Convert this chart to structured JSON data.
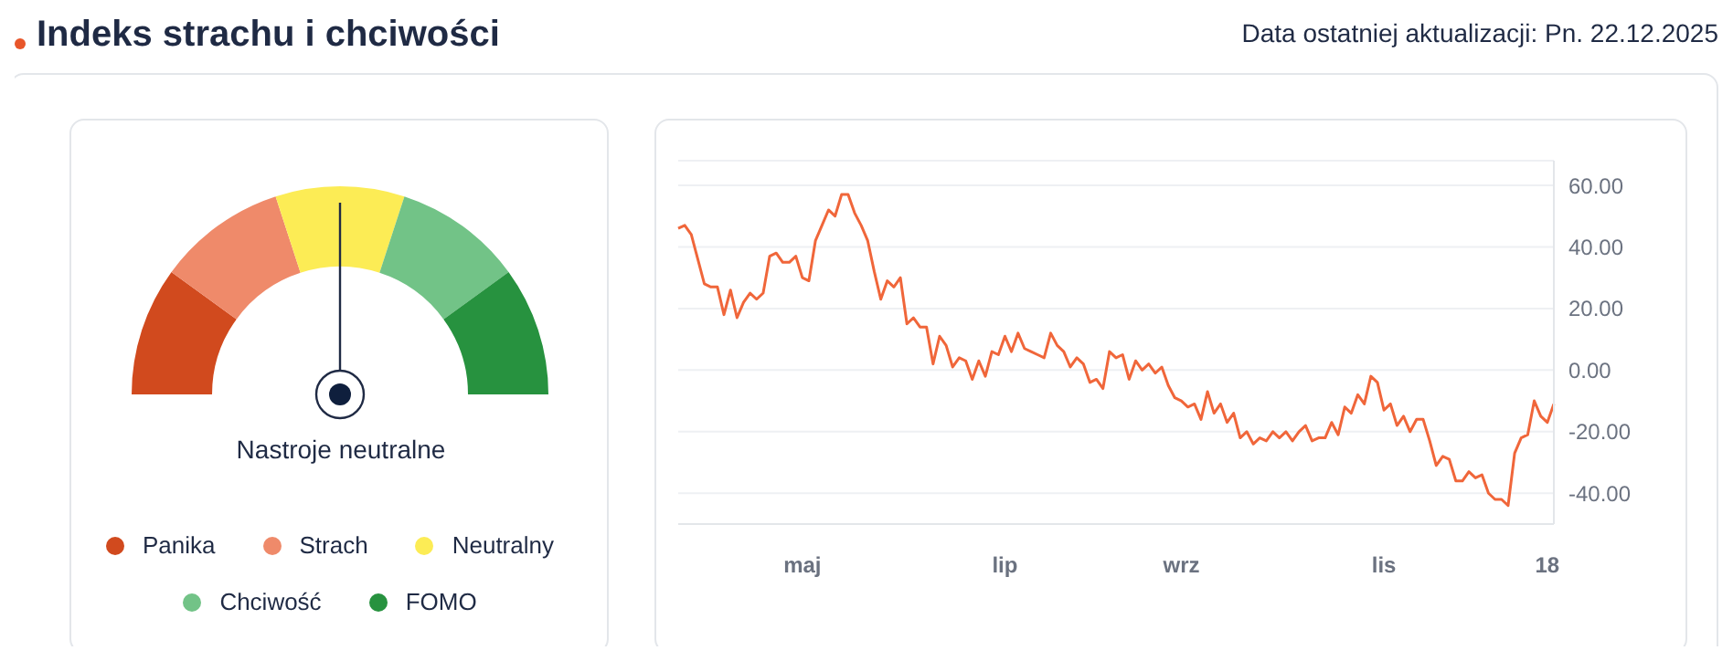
{
  "chart_data": [
    {
      "type": "donut",
      "title": "Indeks strachu i chciwości",
      "annotations": [
        "Nastroje neutralne"
      ],
      "categories": [
        "Panika",
        "Strach",
        "Neutralny",
        "Chciwość",
        "FOMO"
      ],
      "values": [
        20,
        20,
        20,
        20,
        20
      ],
      "colors": [
        "#d14a1e",
        "#ef8a6a",
        "#fcec55",
        "#72c387",
        "#27923f"
      ],
      "needle": "Neutralny",
      "legend": "bottom"
    },
    {
      "type": "line",
      "subtitle": "Data ostatniej aktualizacji: Pn. 22.12.2025",
      "grid": "y",
      "ylim": [
        -50,
        68
      ],
      "yticks": [
        {
          "value": -40,
          "label": "-40.00"
        },
        {
          "value": -20,
          "label": "-20.00"
        },
        {
          "value": 0,
          "label": "0.00"
        },
        {
          "value": 20,
          "label": "20.00"
        },
        {
          "value": 40,
          "label": "40.00"
        },
        {
          "value": 60,
          "label": "60.00"
        }
      ],
      "categories": [
        null,
        null,
        null,
        null,
        null,
        null,
        null,
        null,
        null,
        null,
        null,
        null,
        null,
        null,
        null,
        null,
        null,
        null,
        null,
        "maj",
        null,
        null,
        null,
        null,
        null,
        null,
        null,
        null,
        null,
        null,
        null,
        null,
        null,
        null,
        null,
        null,
        null,
        null,
        null,
        null,
        null,
        null,
        null,
        null,
        null,
        null,
        null,
        null,
        null,
        null,
        "lip",
        null,
        null,
        null,
        null,
        null,
        null,
        null,
        null,
        null,
        null,
        null,
        null,
        null,
        null,
        null,
        null,
        null,
        null,
        null,
        null,
        null,
        null,
        null,
        null,
        null,
        null,
        "wrz",
        null,
        null,
        null,
        null,
        null,
        null,
        null,
        null,
        null,
        null,
        null,
        null,
        null,
        null,
        null,
        null,
        null,
        null,
        null,
        null,
        null,
        null,
        null,
        null,
        null,
        null,
        null,
        null,
        null,
        null,
        "lis",
        null,
        null,
        null,
        null,
        null,
        null,
        null,
        null,
        null,
        null,
        null,
        null,
        null,
        null,
        null,
        null,
        null,
        null,
        null,
        null,
        null,
        null,
        null,
        null,
        "18",
        null
      ],
      "series": [
        {
          "color": "#f0663a",
          "values": [
            46,
            47,
            44,
            36,
            28,
            27,
            27,
            18,
            26,
            17,
            22,
            25,
            23,
            25,
            37,
            38,
            35,
            35,
            37,
            30,
            29,
            42,
            47,
            52,
            50,
            57,
            57,
            51,
            47,
            42,
            32,
            23,
            29,
            27,
            30,
            15,
            17,
            14,
            14,
            2,
            11,
            8,
            1,
            4,
            3,
            -3,
            3,
            -2,
            6,
            5,
            11,
            6,
            12,
            7,
            6,
            5,
            4,
            12,
            8,
            6,
            1,
            4,
            2,
            -4,
            -3,
            -6,
            6,
            4,
            5,
            -3,
            3,
            0,
            2,
            -1,
            1,
            -5,
            -9,
            -10,
            -12,
            -11,
            -16,
            -7,
            -14,
            -11,
            -17,
            -14,
            -22,
            -20,
            -24,
            -22,
            -23,
            -20,
            -22,
            -20,
            -23,
            -20,
            -18,
            -23,
            -22,
            -22,
            -17,
            -21,
            -12,
            -14,
            -8,
            -11,
            -2,
            -4,
            -13,
            -11,
            -18,
            -15,
            -20,
            -16,
            -16,
            -23,
            -31,
            -28,
            -29,
            -36,
            -36,
            -33,
            -35,
            -34,
            -40,
            -42,
            -42,
            -44,
            -27,
            -22,
            -21,
            -10,
            -15,
            -17,
            -11
          ]
        }
      ]
    }
  ]
}
